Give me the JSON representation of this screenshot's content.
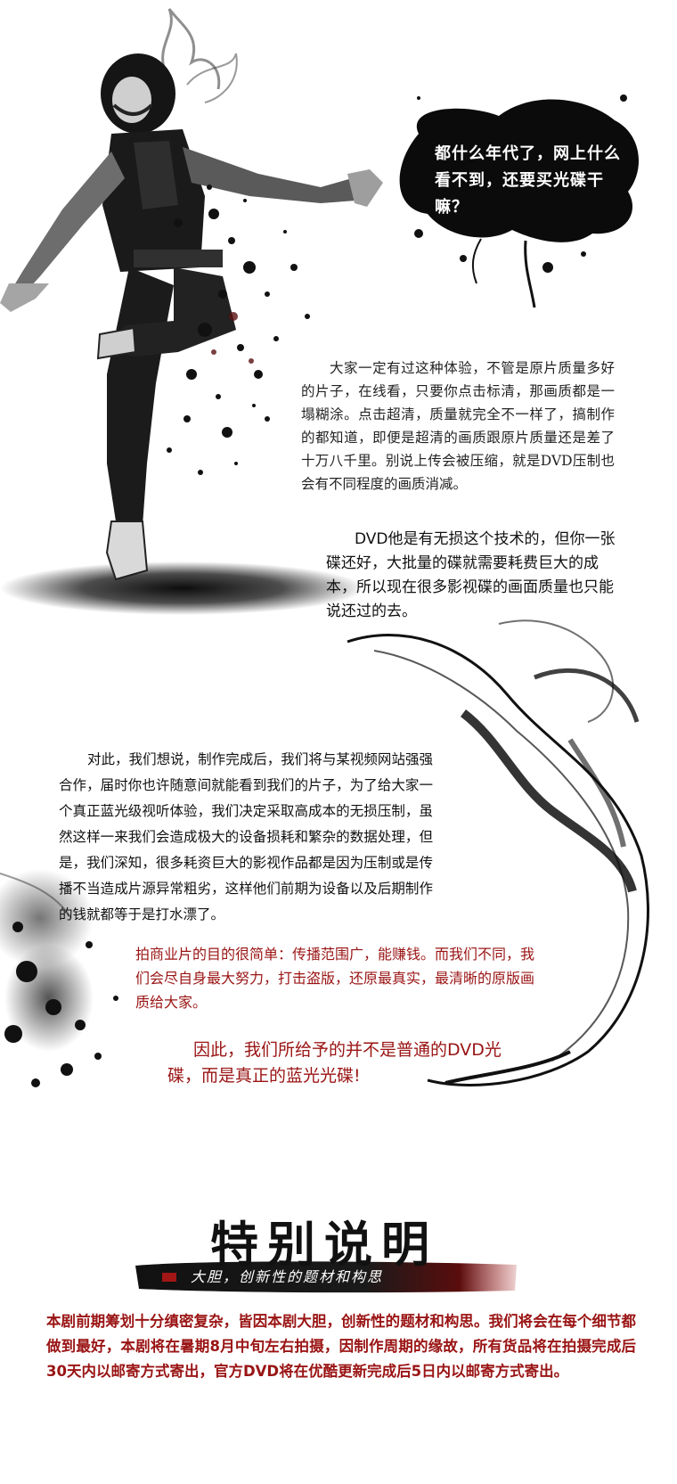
{
  "bubble": {
    "text": "都什么年代了，网上什么看不到，还要买光碟干嘛？"
  },
  "paragraphs": {
    "p1": "大家一定有过这种体验，不管是原片质量多好的片子，在线看，只要你点击标清，那画质都是一塌糊涂。点击超清，质量就完全不一样了，搞制作的都知道，即便是超清的画质跟原片质量还是差了十万八千里。别说上传会被压缩，就是DVD压制也会有不同程度的画质消减。",
    "p2": "DVD他是有无损这个技术的，但你一张碟还好，大批量的碟就需要耗费巨大的成本，所以现在很多影视碟的画面质量也只能说还过的去。",
    "p3": "对此，我们想说，制作完成后，我们将与某视频网站强强合作，届时你也许随意间就能看到我们的片子，为了给大家一个真正蓝光级视听体验，我们决定采取高成本的无损压制，虽然这样一来我们会造成极大的设备损耗和繁杂的数据处理，但是，我们深知，很多耗资巨大的影视作品都是因为压制或是传播不当造成片源异常粗劣，这样他们前期为设备以及后期制作的钱就都等于是打水漂了。",
    "p4": "拍商业片的目的很简单：传播范围广，能赚钱。而我们不同，我们会尽自身最大努力，打击盗版，还原最真实，最清晰的原版画质给大家。",
    "p5": "因此，我们所给予的并不是普通的DVD光碟，而是真正的蓝光光碟!"
  },
  "special": {
    "title": "特别说明",
    "subtitle": "大胆，创新性的题材和构思",
    "body": "本剧前期筹划十分缜密复杂，皆因本剧大胆，创新性的题材和构思。我们将会在每个细节都做到最好，本剧将在暑期8月中旬左右拍摄，因制作周期的缘故，所有货品将在拍摄完成后30天内以邮寄方式寄出，官方DVD将在优酷更新完成后5日内以邮寄方式寄出。"
  },
  "colors": {
    "accent_red": "#9a1414",
    "ink": "#111111",
    "background": "#ffffff"
  },
  "images": {
    "dancer": "ink-splatter-dancer-illustration",
    "ink_bubble": "ink-blot-speech-bubble",
    "smoke_right": "ink-smoke-swirl",
    "splatter_left": "ink-splatter-left",
    "brush_bar": "red-black-brush-stroke-banner"
  }
}
